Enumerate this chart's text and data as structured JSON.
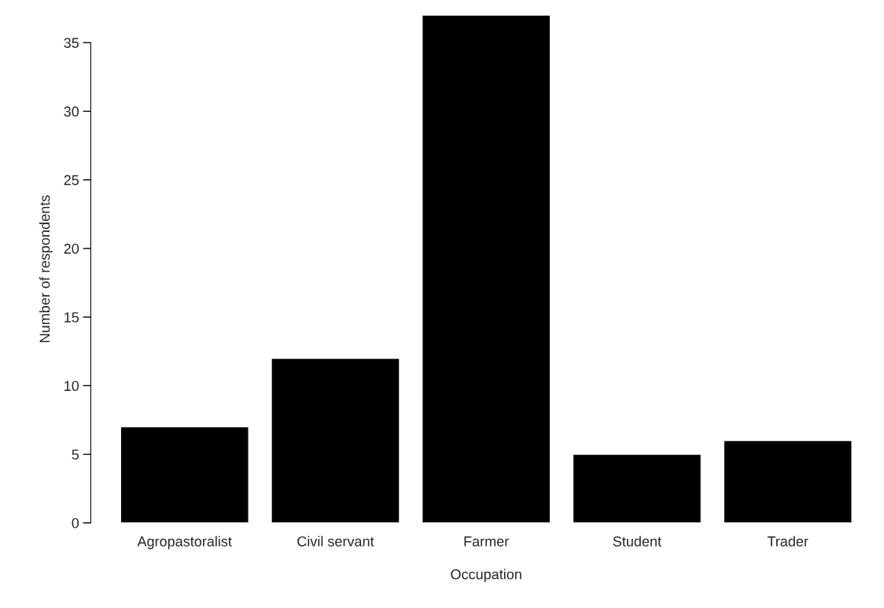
{
  "chart_data": {
    "type": "bar",
    "xlabel": "Occupation",
    "ylabel": "Number of respondents",
    "categories": [
      "Agropastoralist",
      "Civil servant",
      "Farmer",
      "Student",
      "Trader"
    ],
    "values": [
      7,
      12,
      37,
      5,
      6
    ],
    "color": "#000000",
    "ylim": [
      0,
      37
    ],
    "yticks": [
      0,
      5,
      10,
      15,
      20,
      25,
      30,
      35
    ],
    "grid": false
  }
}
